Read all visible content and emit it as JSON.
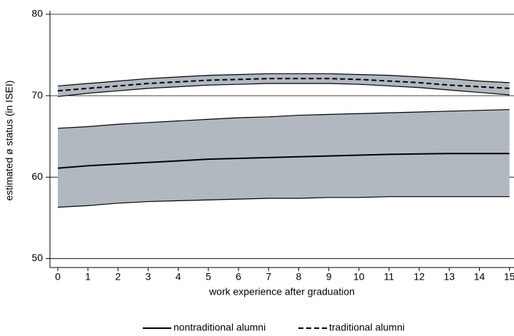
{
  "chart_data": {
    "type": "line",
    "xlabel": "work experience after graduation",
    "ylabel": "estimated ø status (in ISEI)",
    "x": [
      0,
      1,
      2,
      3,
      4,
      5,
      6,
      7,
      8,
      9,
      10,
      11,
      12,
      13,
      14,
      15
    ],
    "series": [
      {
        "name": "nontraditional alumni",
        "color": "#000000",
        "dashed": false,
        "band_color": "#b1b8c0",
        "values": [
          61.1,
          61.4,
          61.6,
          61.8,
          62.0,
          62.2,
          62.3,
          62.4,
          62.5,
          62.6,
          62.7,
          62.8,
          62.85,
          62.9,
          62.9,
          62.9
        ],
        "upper": [
          66.0,
          66.2,
          66.5,
          66.7,
          66.9,
          67.1,
          67.3,
          67.4,
          67.6,
          67.7,
          67.8,
          67.9,
          68.0,
          68.1,
          68.2,
          68.3
        ],
        "lower": [
          56.3,
          56.5,
          56.8,
          57.0,
          57.1,
          57.2,
          57.3,
          57.4,
          57.4,
          57.5,
          57.5,
          57.6,
          57.6,
          57.6,
          57.6,
          57.6
        ]
      },
      {
        "name": "traditional alumni",
        "color": "#000000",
        "dashed": true,
        "band_color": "#b1b8c0",
        "values": [
          70.6,
          70.9,
          71.2,
          71.5,
          71.7,
          71.9,
          72.0,
          72.1,
          72.1,
          72.1,
          72.0,
          71.8,
          71.6,
          71.3,
          71.1,
          70.9
        ],
        "upper": [
          71.2,
          71.5,
          71.8,
          72.1,
          72.3,
          72.5,
          72.6,
          72.7,
          72.7,
          72.7,
          72.6,
          72.5,
          72.3,
          72.1,
          71.8,
          71.6
        ],
        "lower": [
          69.9,
          70.3,
          70.6,
          70.9,
          71.1,
          71.3,
          71.4,
          71.5,
          71.5,
          71.5,
          71.4,
          71.2,
          71.0,
          70.7,
          70.4,
          70.1
        ]
      }
    ],
    "xlim": [
      -0.26,
      15.15
    ],
    "ylim": [
      48.9,
      80
    ],
    "xticks": [
      0,
      1,
      2,
      3,
      4,
      5,
      6,
      7,
      8,
      9,
      10,
      11,
      12,
      13,
      14,
      15
    ],
    "yticks": [
      50,
      60,
      70,
      80
    ],
    "grid": true,
    "legend": "bottom"
  }
}
